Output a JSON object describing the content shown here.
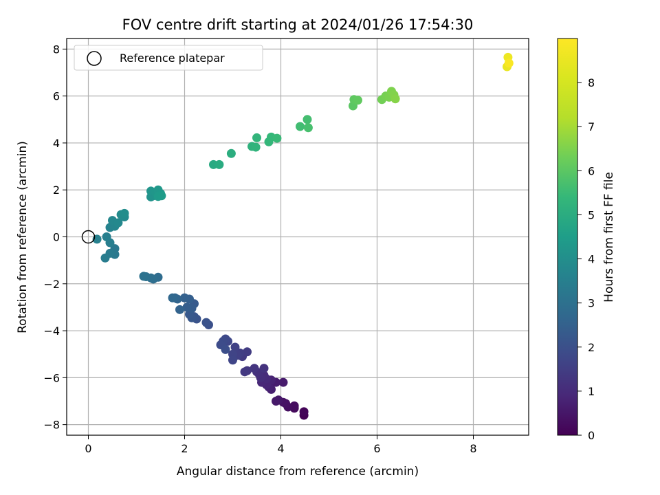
{
  "chart_data": {
    "type": "scatter",
    "title": "FOV centre drift starting at 2024/01/26 17:54:30",
    "xlabel": "Angular distance from reference (arcmin)",
    "ylabel": "Rotation from reference (arcmin)",
    "xlim": [
      -0.45,
      9.15
    ],
    "ylim": [
      -8.45,
      8.45
    ],
    "xticks": [
      0,
      2,
      4,
      6,
      8
    ],
    "yticks": [
      -8,
      -6,
      -4,
      -2,
      0,
      2,
      4,
      6,
      8
    ],
    "grid": true,
    "legend": {
      "position": "top-left",
      "entries": [
        {
          "label": "Reference platepar",
          "marker": "open-circle"
        }
      ]
    },
    "reference_point": {
      "x": 0,
      "y": 0
    },
    "colorbar": {
      "label": "Hours from first FF file",
      "min": 0,
      "max": 9,
      "ticks": [
        0,
        1,
        2,
        3,
        4,
        5,
        6,
        7,
        8
      ],
      "colormap": "viridis"
    },
    "points": [
      {
        "x": 4.48,
        "y": -7.6,
        "c": 0.0
      },
      {
        "x": 4.48,
        "y": -7.45,
        "c": 0.1
      },
      {
        "x": 4.28,
        "y": -7.3,
        "c": 0.2
      },
      {
        "x": 4.28,
        "y": -7.2,
        "c": 0.25
      },
      {
        "x": 4.15,
        "y": -7.25,
        "c": 0.3
      },
      {
        "x": 4.1,
        "y": -7.1,
        "c": 0.35
      },
      {
        "x": 4.05,
        "y": -7.05,
        "c": 0.4
      },
      {
        "x": 3.95,
        "y": -6.95,
        "c": 0.5
      },
      {
        "x": 3.9,
        "y": -7.0,
        "c": 0.55
      },
      {
        "x": 4.05,
        "y": -6.2,
        "c": 0.6
      },
      {
        "x": 3.9,
        "y": -6.2,
        "c": 0.65
      },
      {
        "x": 3.8,
        "y": -6.5,
        "c": 0.7
      },
      {
        "x": 3.75,
        "y": -6.4,
        "c": 0.75
      },
      {
        "x": 3.8,
        "y": -6.1,
        "c": 0.8
      },
      {
        "x": 3.7,
        "y": -6.3,
        "c": 0.85
      },
      {
        "x": 3.6,
        "y": -6.2,
        "c": 0.9
      },
      {
        "x": 3.7,
        "y": -6.05,
        "c": 0.95
      },
      {
        "x": 3.65,
        "y": -5.9,
        "c": 1.0
      },
      {
        "x": 3.58,
        "y": -6.0,
        "c": 1.05
      },
      {
        "x": 3.55,
        "y": -5.85,
        "c": 1.1
      },
      {
        "x": 3.5,
        "y": -5.75,
        "c": 1.15
      },
      {
        "x": 3.65,
        "y": -5.6,
        "c": 1.2
      },
      {
        "x": 3.45,
        "y": -5.6,
        "c": 1.25
      },
      {
        "x": 3.3,
        "y": -5.7,
        "c": 1.3
      },
      {
        "x": 3.25,
        "y": -5.75,
        "c": 1.35
      },
      {
        "x": 3.2,
        "y": -5.1,
        "c": 1.4
      },
      {
        "x": 3.3,
        "y": -4.9,
        "c": 1.45
      },
      {
        "x": 3.15,
        "y": -4.95,
        "c": 1.5
      },
      {
        "x": 3.1,
        "y": -5.05,
        "c": 1.55
      },
      {
        "x": 3.05,
        "y": -4.7,
        "c": 1.6
      },
      {
        "x": 3.0,
        "y": -5.0,
        "c": 1.65
      },
      {
        "x": 3.0,
        "y": -5.25,
        "c": 1.7
      },
      {
        "x": 2.9,
        "y": -4.45,
        "c": 1.75
      },
      {
        "x": 2.85,
        "y": -4.35,
        "c": 1.8
      },
      {
        "x": 2.8,
        "y": -4.45,
        "c": 1.85
      },
      {
        "x": 2.75,
        "y": -4.6,
        "c": 1.9
      },
      {
        "x": 2.85,
        "y": -4.8,
        "c": 1.95
      },
      {
        "x": 2.5,
        "y": -3.75,
        "c": 2.0
      },
      {
        "x": 2.45,
        "y": -3.65,
        "c": 2.05
      },
      {
        "x": 2.25,
        "y": -3.5,
        "c": 2.1
      },
      {
        "x": 2.2,
        "y": -3.4,
        "c": 2.15
      },
      {
        "x": 2.15,
        "y": -3.45,
        "c": 2.2
      },
      {
        "x": 2.1,
        "y": -3.3,
        "c": 2.25
      },
      {
        "x": 2.2,
        "y": -2.85,
        "c": 2.3
      },
      {
        "x": 2.15,
        "y": -3.05,
        "c": 2.35
      },
      {
        "x": 2.05,
        "y": -3.0,
        "c": 2.4
      },
      {
        "x": 2.1,
        "y": -2.65,
        "c": 2.45
      },
      {
        "x": 2.0,
        "y": -2.6,
        "c": 2.5
      },
      {
        "x": 1.9,
        "y": -3.1,
        "c": 2.55
      },
      {
        "x": 1.85,
        "y": -2.65,
        "c": 2.6
      },
      {
        "x": 1.8,
        "y": -2.6,
        "c": 2.65
      },
      {
        "x": 1.75,
        "y": -2.6,
        "c": 2.7
      },
      {
        "x": 1.45,
        "y": -1.72,
        "c": 2.85
      },
      {
        "x": 1.35,
        "y": -1.8,
        "c": 2.9
      },
      {
        "x": 1.3,
        "y": -1.75,
        "c": 2.95
      },
      {
        "x": 1.2,
        "y": -1.7,
        "c": 3.0
      },
      {
        "x": 1.15,
        "y": -1.68,
        "c": 3.05
      },
      {
        "x": 0.55,
        "y": -0.5,
        "c": 3.25
      },
      {
        "x": 0.55,
        "y": -0.75,
        "c": 3.3
      },
      {
        "x": 0.45,
        "y": -0.7,
        "c": 3.35
      },
      {
        "x": 0.35,
        "y": -0.9,
        "c": 3.4
      },
      {
        "x": 0.45,
        "y": -0.25,
        "c": 3.45
      },
      {
        "x": 0.38,
        "y": 0.0,
        "c": 3.5
      },
      {
        "x": 0.18,
        "y": -0.1,
        "c": 3.55
      },
      {
        "x": 0.45,
        "y": 0.4,
        "c": 3.6
      },
      {
        "x": 0.5,
        "y": 0.5,
        "c": 3.65
      },
      {
        "x": 0.55,
        "y": 0.45,
        "c": 3.7
      },
      {
        "x": 0.5,
        "y": 0.7,
        "c": 3.75
      },
      {
        "x": 0.62,
        "y": 0.6,
        "c": 3.8
      },
      {
        "x": 0.75,
        "y": 0.85,
        "c": 3.85
      },
      {
        "x": 0.68,
        "y": 0.95,
        "c": 3.9
      },
      {
        "x": 0.75,
        "y": 1.0,
        "c": 3.95
      },
      {
        "x": 1.3,
        "y": 1.7,
        "c": 4.1
      },
      {
        "x": 1.35,
        "y": 1.75,
        "c": 4.15
      },
      {
        "x": 1.3,
        "y": 1.95,
        "c": 4.2
      },
      {
        "x": 1.4,
        "y": 1.9,
        "c": 4.25
      },
      {
        "x": 1.45,
        "y": 2.0,
        "c": 4.3
      },
      {
        "x": 1.5,
        "y": 1.85,
        "c": 4.35
      },
      {
        "x": 1.45,
        "y": 1.72,
        "c": 4.4
      },
      {
        "x": 1.52,
        "y": 1.75,
        "c": 4.45
      },
      {
        "x": 2.6,
        "y": 3.08,
        "c": 4.9
      },
      {
        "x": 2.72,
        "y": 3.08,
        "c": 4.95
      },
      {
        "x": 2.97,
        "y": 3.55,
        "c": 5.05
      },
      {
        "x": 3.4,
        "y": 3.85,
        "c": 5.2
      },
      {
        "x": 3.48,
        "y": 3.82,
        "c": 5.25
      },
      {
        "x": 3.5,
        "y": 4.22,
        "c": 5.3
      },
      {
        "x": 3.75,
        "y": 4.05,
        "c": 5.35
      },
      {
        "x": 3.8,
        "y": 4.25,
        "c": 5.4
      },
      {
        "x": 3.92,
        "y": 4.2,
        "c": 5.45
      },
      {
        "x": 4.4,
        "y": 4.7,
        "c": 5.6
      },
      {
        "x": 4.55,
        "y": 5.0,
        "c": 5.65
      },
      {
        "x": 4.57,
        "y": 4.65,
        "c": 5.7
      },
      {
        "x": 5.5,
        "y": 5.58,
        "c": 6.0
      },
      {
        "x": 5.52,
        "y": 5.85,
        "c": 6.05
      },
      {
        "x": 5.6,
        "y": 5.82,
        "c": 6.1
      },
      {
        "x": 6.1,
        "y": 5.85,
        "c": 6.35
      },
      {
        "x": 6.18,
        "y": 6.0,
        "c": 6.4
      },
      {
        "x": 6.25,
        "y": 5.95,
        "c": 6.45
      },
      {
        "x": 6.3,
        "y": 6.2,
        "c": 6.5
      },
      {
        "x": 6.35,
        "y": 6.05,
        "c": 6.55
      },
      {
        "x": 6.38,
        "y": 5.88,
        "c": 6.6
      },
      {
        "x": 8.7,
        "y": 7.25,
        "c": 8.5
      },
      {
        "x": 8.72,
        "y": 7.65,
        "c": 8.6
      },
      {
        "x": 8.74,
        "y": 7.4,
        "c": 8.9
      }
    ]
  }
}
